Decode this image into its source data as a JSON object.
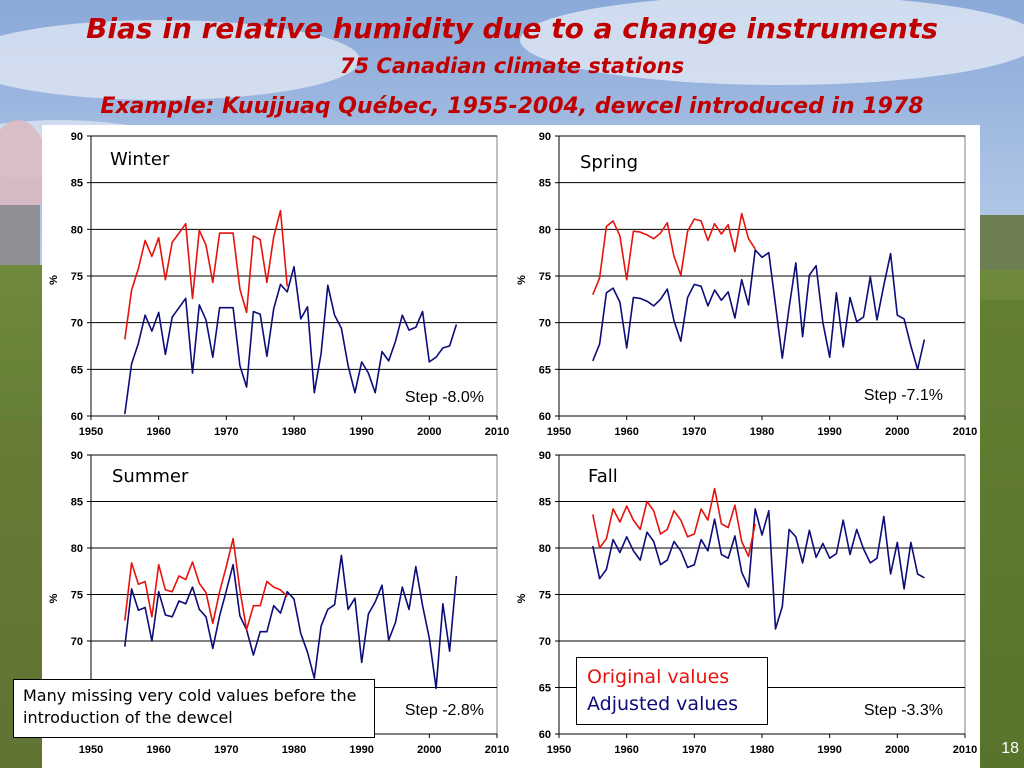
{
  "slide": {
    "title": "Bias in relative humidity due to a change instruments",
    "subtitle": "75 Canadian climate stations",
    "example": "Example: Kuujjuaq Québec, 1955-2004, dewcel introduced in 1978",
    "note": "Many missing very cold values before the introduction of the dewcel",
    "page_number": "18"
  },
  "legend": {
    "original": "Original values",
    "adjusted": "Adjusted values"
  },
  "colors": {
    "original": "#e8120c",
    "adjusted": "#0c0c7a",
    "title": "#c00000"
  },
  "chart_data": [
    {
      "type": "line",
      "title": "Winter",
      "step_label": "Step -8.0%",
      "ylabel": "%",
      "xlim": [
        1950,
        2010
      ],
      "ylim": [
        60,
        90
      ],
      "xticks": [
        1950,
        1960,
        1970,
        1980,
        1990,
        2000,
        2010
      ],
      "yticks": [
        60,
        65,
        70,
        75,
        80,
        85,
        90
      ],
      "series": [
        {
          "name": "Original values",
          "x": [
            1955,
            1956,
            1957,
            1958,
            1959,
            1960,
            1961,
            1962,
            1963,
            1964,
            1965,
            1966,
            1967,
            1968,
            1969,
            1970,
            1971,
            1972,
            1973,
            1974,
            1975,
            1976,
            1977,
            1978,
            1979
          ],
          "y": [
            68.2,
            73.5,
            75.8,
            78.8,
            77.1,
            79.1,
            74.6,
            78.6,
            79.6,
            80.6,
            72.6,
            79.9,
            78.3,
            74.3,
            79.6,
            79.6,
            79.6,
            73.6,
            71.1,
            79.3,
            78.9,
            74.3,
            79.2,
            82.0,
            73.9
          ]
        },
        {
          "name": "Adjusted values",
          "x": [
            1955,
            1956,
            1957,
            1958,
            1959,
            1960,
            1961,
            1962,
            1963,
            1964,
            1965,
            1966,
            1967,
            1968,
            1969,
            1970,
            1971,
            1972,
            1973,
            1974,
            1975,
            1976,
            1977,
            1978,
            1979,
            1980,
            1981,
            1982,
            1983,
            1984,
            1985,
            1986,
            1987,
            1988,
            1989,
            1990,
            1991,
            1992,
            1993,
            1994,
            1995,
            1996,
            1997,
            1998,
            1999,
            2000,
            2001,
            2002,
            2003,
            2004
          ],
          "y": [
            60.2,
            65.6,
            67.8,
            70.8,
            69.1,
            71.1,
            66.6,
            70.6,
            71.6,
            72.6,
            64.6,
            71.9,
            70.3,
            66.3,
            71.6,
            71.6,
            71.6,
            65.4,
            63.1,
            71.2,
            70.9,
            66.4,
            71.5,
            74.1,
            73.3,
            76.0,
            70.4,
            71.7,
            62.5,
            66.7,
            74.0,
            70.8,
            69.4,
            65.4,
            62.5,
            65.8,
            64.6,
            62.5,
            66.9,
            65.9,
            68.0,
            70.8,
            69.2,
            69.5,
            71.2,
            65.8,
            66.3,
            67.3,
            67.5,
            69.8
          ]
        }
      ]
    },
    {
      "type": "line",
      "title": "Spring",
      "step_label": "Step -7.1%",
      "ylabel": "%",
      "xlim": [
        1950,
        2010
      ],
      "ylim": [
        60,
        90
      ],
      "xticks": [
        1950,
        1960,
        1970,
        1980,
        1990,
        2000,
        2010
      ],
      "yticks": [
        60,
        65,
        70,
        75,
        80,
        85,
        90
      ],
      "series": [
        {
          "name": "Original values",
          "x": [
            1955,
            1956,
            1957,
            1958,
            1959,
            1960,
            1961,
            1962,
            1963,
            1964,
            1965,
            1966,
            1967,
            1968,
            1969,
            1970,
            1971,
            1972,
            1973,
            1974,
            1975,
            1976,
            1977,
            1978,
            1979
          ],
          "y": [
            73.0,
            74.8,
            80.3,
            80.9,
            79.3,
            74.6,
            79.8,
            79.7,
            79.4,
            79.0,
            79.6,
            80.7,
            77.1,
            75.1,
            79.8,
            81.1,
            80.9,
            78.8,
            80.6,
            79.5,
            80.5,
            77.6,
            81.7,
            79.0,
            77.9
          ]
        },
        {
          "name": "Adjusted values",
          "x": [
            1955,
            1956,
            1957,
            1958,
            1959,
            1960,
            1961,
            1962,
            1963,
            1964,
            1965,
            1966,
            1967,
            1968,
            1969,
            1970,
            1971,
            1972,
            1973,
            1974,
            1975,
            1976,
            1977,
            1978,
            1979,
            1980,
            1981,
            1982,
            1983,
            1984,
            1985,
            1986,
            1987,
            1988,
            1989,
            1990,
            1991,
            1992,
            1993,
            1994,
            1995,
            1996,
            1997,
            1998,
            1999,
            2000,
            2001,
            2002,
            2003,
            2004
          ],
          "y": [
            65.9,
            67.7,
            73.2,
            73.7,
            72.2,
            67.3,
            72.7,
            72.6,
            72.3,
            71.8,
            72.5,
            73.6,
            70.2,
            68.0,
            72.7,
            74.1,
            73.9,
            71.8,
            73.5,
            72.4,
            73.3,
            70.5,
            74.6,
            71.9,
            77.8,
            77.0,
            77.5,
            71.9,
            66.2,
            71.6,
            76.4,
            68.5,
            75.1,
            76.1,
            70.0,
            66.3,
            73.2,
            67.4,
            72.7,
            70.1,
            70.6,
            74.9,
            70.3,
            74.0,
            77.4,
            70.8,
            70.4,
            67.5,
            65.0,
            68.2
          ]
        }
      ]
    },
    {
      "type": "line",
      "title": "Summer",
      "step_label": "Step -2.8%",
      "ylabel": "%",
      "xlim": [
        1950,
        2010
      ],
      "ylim": [
        60,
        90
      ],
      "xticks": [
        1950,
        1960,
        1970,
        1980,
        1990,
        2000,
        2010
      ],
      "yticks": [
        70,
        75,
        80,
        85,
        90
      ],
      "series": [
        {
          "name": "Original values",
          "x": [
            1955,
            1956,
            1957,
            1958,
            1959,
            1960,
            1961,
            1962,
            1963,
            1964,
            1965,
            1966,
            1967,
            1968,
            1969,
            1970,
            1971,
            1972,
            1973,
            1974,
            1975,
            1976,
            1977,
            1978,
            1979
          ],
          "y": [
            72.2,
            78.4,
            76.1,
            76.4,
            72.6,
            78.2,
            75.5,
            75.3,
            77.0,
            76.6,
            78.5,
            76.2,
            75.2,
            71.9,
            75.3,
            78.0,
            81.0,
            75.5,
            71.2,
            73.8,
            73.8,
            76.4,
            75.8,
            75.5,
            74.8
          ]
        },
        {
          "name": "Adjusted values",
          "x": [
            1955,
            1956,
            1957,
            1958,
            1959,
            1960,
            1961,
            1962,
            1963,
            1964,
            1965,
            1966,
            1967,
            1968,
            1969,
            1970,
            1971,
            1972,
            1973,
            1974,
            1975,
            1976,
            1977,
            1978,
            1979,
            1980,
            1981,
            1982,
            1983,
            1984,
            1985,
            1986,
            1987,
            1988,
            1989,
            1990,
            1991,
            1992,
            1993,
            1994,
            1995,
            1996,
            1997,
            1998,
            1999,
            2000,
            2001,
            2002,
            2003,
            2004
          ],
          "y": [
            69.4,
            75.6,
            73.3,
            73.6,
            70.0,
            75.3,
            72.8,
            72.6,
            74.3,
            74.0,
            75.8,
            73.4,
            72.6,
            69.2,
            72.7,
            75.4,
            78.2,
            72.7,
            71.2,
            68.5,
            71.0,
            71.0,
            73.8,
            73.0,
            75.3,
            74.5,
            70.8,
            68.8,
            66.0,
            71.6,
            73.4,
            73.9,
            79.2,
            73.4,
            74.6,
            67.7,
            72.9,
            74.2,
            76.0,
            70.1,
            72.0,
            75.8,
            73.4,
            78.0,
            73.8,
            70.3,
            64.9,
            74.0,
            68.9,
            77.0
          ]
        }
      ]
    },
    {
      "type": "line",
      "title": "Fall",
      "step_label": "Step -3.3%",
      "ylabel": "%",
      "xlim": [
        1950,
        2010
      ],
      "ylim": [
        60,
        90
      ],
      "xticks": [
        1950,
        1960,
        1970,
        1980,
        1990,
        2000,
        2010
      ],
      "yticks": [
        60,
        65,
        70,
        75,
        80,
        85,
        90
      ],
      "series": [
        {
          "name": "Original values",
          "x": [
            1955,
            1956,
            1957,
            1958,
            1959,
            1960,
            1961,
            1962,
            1963,
            1964,
            1965,
            1966,
            1967,
            1968,
            1969,
            1970,
            1971,
            1972,
            1973,
            1974,
            1975,
            1976,
            1977,
            1978,
            1979
          ],
          "y": [
            83.6,
            80.0,
            81.0,
            84.2,
            82.8,
            84.5,
            83.0,
            82.0,
            85.0,
            84.0,
            81.5,
            82.0,
            84.0,
            83.0,
            81.2,
            81.5,
            84.2,
            83.0,
            86.4,
            82.6,
            82.2,
            84.6,
            80.7,
            79.1,
            82.6
          ]
        },
        {
          "name": "Adjusted values",
          "x": [
            1955,
            1956,
            1957,
            1958,
            1959,
            1960,
            1961,
            1962,
            1963,
            1964,
            1965,
            1966,
            1967,
            1968,
            1969,
            1970,
            1971,
            1972,
            1973,
            1974,
            1975,
            1976,
            1977,
            1978,
            1979,
            1980,
            1981,
            1982,
            1983,
            1984,
            1985,
            1986,
            1987,
            1988,
            1989,
            1990,
            1991,
            1992,
            1993,
            1994,
            1995,
            1996,
            1997,
            1998,
            1999,
            2000,
            2001,
            2002,
            2003,
            2004
          ],
          "y": [
            80.2,
            76.7,
            77.7,
            80.9,
            79.5,
            81.2,
            79.7,
            78.7,
            81.7,
            80.7,
            78.2,
            78.7,
            80.7,
            79.7,
            77.9,
            78.2,
            80.9,
            79.7,
            83.1,
            79.3,
            78.9,
            81.3,
            77.4,
            75.8,
            84.2,
            81.4,
            84.0,
            71.3,
            73.7,
            82.0,
            81.2,
            78.4,
            81.9,
            79.0,
            80.5,
            78.9,
            79.4,
            83.0,
            79.3,
            82.0,
            79.9,
            78.4,
            78.9,
            83.4,
            77.2,
            80.6,
            75.6,
            80.6,
            77.2,
            76.8
          ]
        }
      ]
    }
  ]
}
